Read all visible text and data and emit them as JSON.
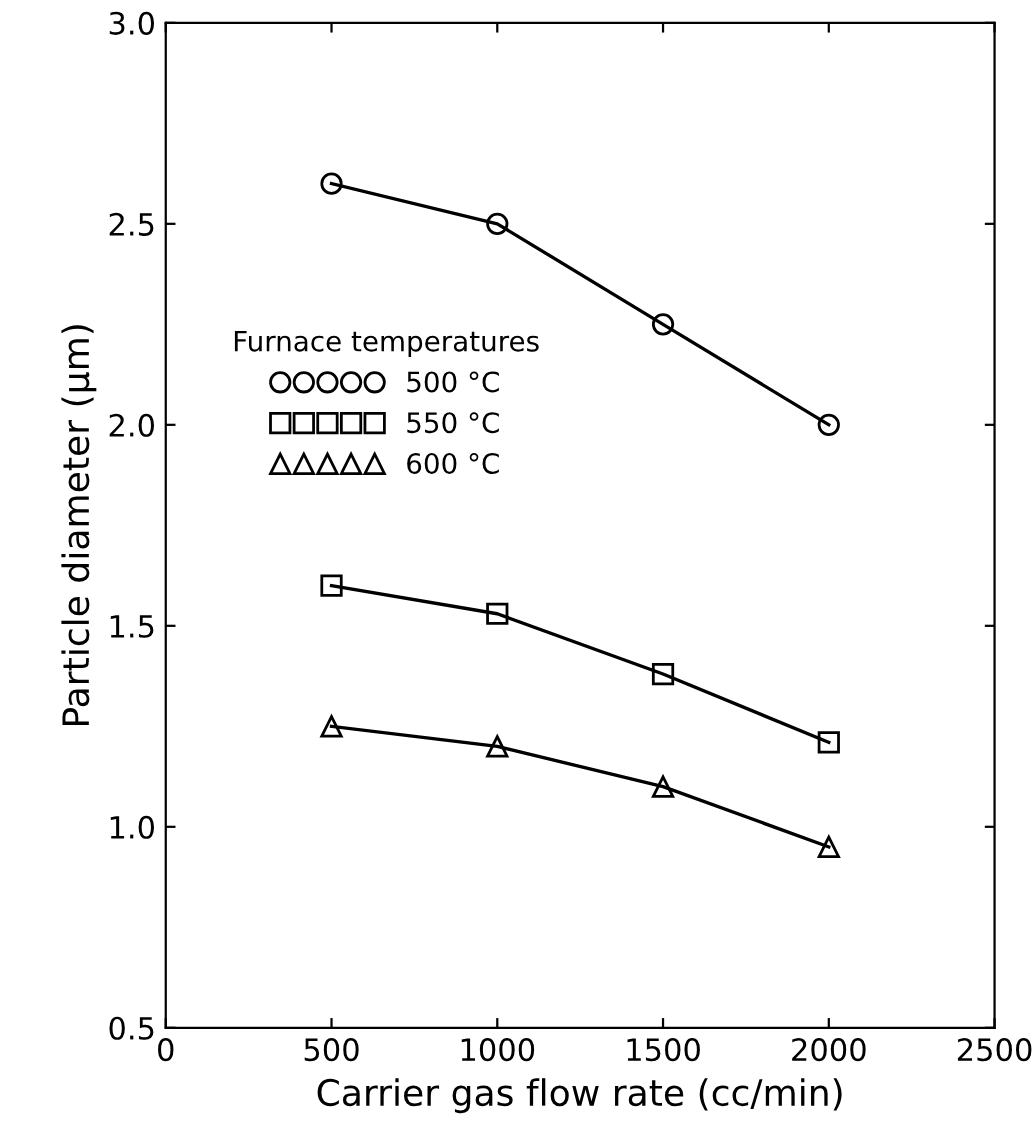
{
  "chart_data": {
    "type": "line",
    "xlabel": "Carrier gas flow rate (cc/min)",
    "ylabel": "Particle diameter (μm)",
    "x": [
      500,
      1000,
      1500,
      2000
    ],
    "series": [
      {
        "name": "500 °C",
        "color": "#000000",
        "marker": "circle",
        "values": [
          2.6,
          2.5,
          2.25,
          2.0
        ]
      },
      {
        "name": "550 °C",
        "color": "#000000",
        "marker": "square",
        "values": [
          1.6,
          1.53,
          1.38,
          1.21
        ]
      },
      {
        "name": "600 °C",
        "color": "#000000",
        "marker": "triangle",
        "values": [
          1.25,
          1.2,
          1.1,
          0.95
        ]
      }
    ],
    "legend_title": "Furnace temperatures",
    "legend": "left",
    "xlim": [
      0,
      2500
    ],
    "xticks": [
      0,
      500,
      1000,
      1500,
      2000,
      2500
    ],
    "ylim": [
      0.5,
      3.0
    ],
    "yticks": [
      0.5,
      {
        "value": 1,
        "label": "1.0"
      },
      1.5,
      {
        "value": 2,
        "label": "2.0"
      },
      2.5,
      {
        "value": 3,
        "label": "3.0"
      }
    ],
    "line_style": "solid",
    "grid": false
  }
}
